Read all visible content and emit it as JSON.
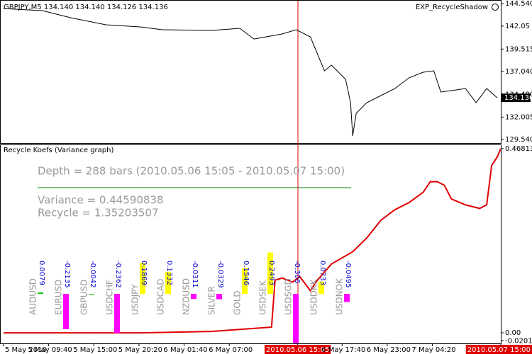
{
  "chart_data": [
    {
      "type": "line",
      "title": "GBPJPY,M5  134.140 134.140 134.126 134.136",
      "subtitle": "EXP_RecycleShadow",
      "last_value": 134.136,
      "color": "#000000",
      "x": [
        0,
        55,
        95,
        145,
        195,
        225,
        295,
        335,
        355,
        395,
        415,
        435,
        455,
        465,
        485,
        492,
        495,
        500,
        515,
        535,
        555,
        575,
        595,
        610,
        620,
        635,
        655,
        670,
        685,
        700
      ],
      "values": [
        143.99,
        143.76,
        142.98,
        142.2,
        141.96,
        141.65,
        141.57,
        141.81,
        140.63,
        141.18,
        141.65,
        140.87,
        137.12,
        137.74,
        136.18,
        133.6,
        129.93,
        132.43,
        133.6,
        134.38,
        135.16,
        136.34,
        136.96,
        137.12,
        134.77,
        134.93,
        135.16,
        133.6,
        135.16,
        134.14
      ],
      "xlim": [
        0,
        704
      ],
      "ylim": [
        129.3,
        144.7
      ],
      "yticks": [
        {
          "value": 144.54,
          "label": "144.540"
        },
        142.05,
        139.515,
        {
          "value": 137.04,
          "label": "137.040"
        },
        {
          "value": 134.49,
          "label": "134.490"
        },
        132.005,
        {
          "value": 129.54,
          "label": "129.540"
        }
      ]
    },
    {
      "type": "line",
      "title": "Recycle Koefs (Variance graph)",
      "annotations": [
        "Depth = 288 bars (2010.05.06 15:05 - 2010.05.07 15:00)",
        "Variance = 0.44590838",
        "Recycle = 1.35203507"
      ],
      "color": "#e00000",
      "x": [
        0,
        195,
        295,
        335,
        380,
        385,
        395,
        410,
        420,
        435,
        445,
        465,
        495,
        515,
        535,
        555,
        575,
        595,
        605,
        615,
        625,
        635,
        655,
        675,
        685,
        692,
        700,
        705
      ],
      "values": [
        0,
        0,
        0.0036,
        0.0089,
        0.0143,
        0.134,
        0.139,
        0.129,
        0.143,
        0.107,
        0.134,
        0.175,
        0.206,
        0.241,
        0.286,
        0.313,
        0.331,
        0.357,
        0.384,
        0.384,
        0.375,
        0.34,
        0.325,
        0.316,
        0.325,
        0.425,
        0.447,
        0.468
      ],
      "xlim": [
        0,
        704
      ],
      "ylim": [
        -0.025,
        0.475
      ],
      "yticks": [
        0.468131,
        {
          "value": 0,
          "label": "0.00"
        },
        -0.020177
      ],
      "xticks": [
        {
          "value": 0,
          "label": "5 May 2010"
        },
        {
          "value": 64,
          "label": "5 May 09:40"
        },
        {
          "value": 128,
          "label": "5 May 15:00"
        },
        {
          "value": 192,
          "label": "5 May 20:20"
        },
        {
          "value": 256,
          "label": "6 May 01:40"
        },
        {
          "value": 320,
          "label": "6 May 07:00"
        },
        {
          "value": 417,
          "label": "2010.05.06 15:05",
          "highlight": true
        },
        {
          "value": 480,
          "label": "6 May 17:40"
        },
        {
          "value": 544,
          "label": "6 May 23:00"
        },
        {
          "value": 608,
          "label": "7 May 04:20"
        },
        {
          "value": 705,
          "label": "2010.05.07 15:00",
          "highlight": true
        }
      ]
    },
    {
      "type": "bar",
      "categories": [
        "AUDUSD",
        "EURUSD",
        "GBPUSD",
        "USDCHF",
        "USDJPY",
        "USDCAD",
        "NZDUSD",
        "SILVER",
        "GOLD",
        "USDSEK",
        "USDSGD",
        "USDDKK",
        "USDNOK"
      ],
      "values": [
        0.0079,
        -0.2135,
        -0.0042,
        -0.2362,
        0.1869,
        0.1332,
        -0.0311,
        -0.0329,
        0.1546,
        0.2493,
        -0.306,
        0.0733,
        -0.0495
      ],
      "colors": [
        "#00c000",
        "#ff00ff",
        "#00c000",
        "#ff00ff",
        "#ffff00",
        "#ffff00",
        "#ff00ff",
        "#ff00ff",
        "#ffff00",
        "#ffff00",
        "#ff00ff",
        "#ffff00",
        "#ff00ff"
      ]
    }
  ]
}
